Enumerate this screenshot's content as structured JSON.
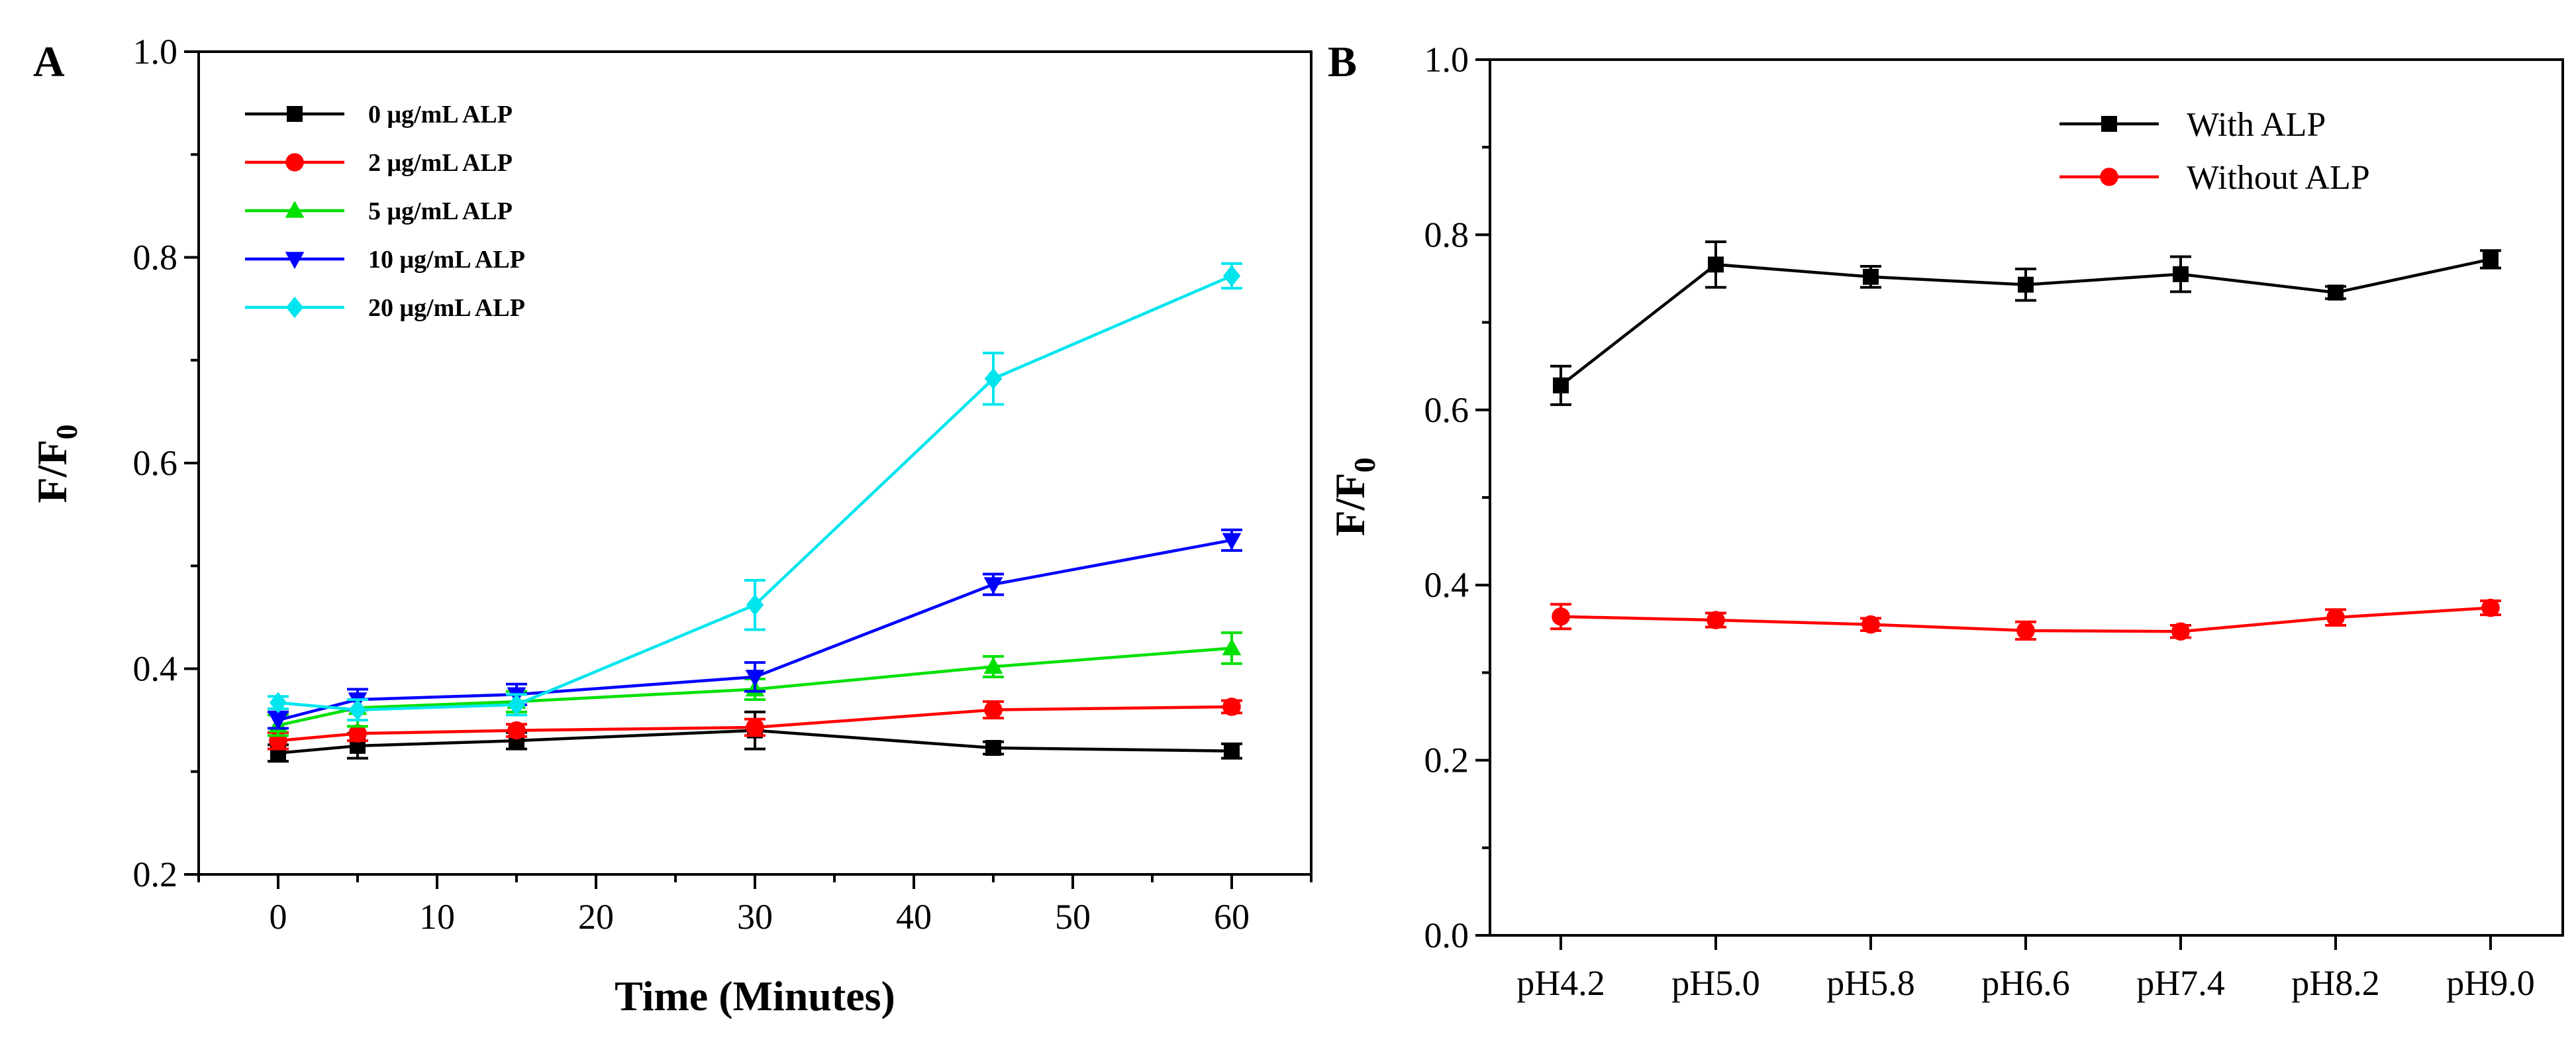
{
  "chart_data": [
    {
      "type": "line",
      "panel_label": "A",
      "xlabel": "Time (Minutes)",
      "ylabel_main": "F/F",
      "ylabel_sub": "0",
      "xlim": [
        -5,
        65
      ],
      "ylim": [
        0.2,
        1.0
      ],
      "xticks": [
        0,
        10,
        20,
        30,
        40,
        50,
        60
      ],
      "yticks": [
        0.2,
        0.4,
        0.6,
        0.8,
        1.0
      ],
      "ytick_labels": [
        "0.2",
        "0.4",
        "0.6",
        "0.8",
        "1.0"
      ],
      "x": [
        0,
        5,
        15,
        30,
        45,
        60
      ],
      "legend_position": "top-left",
      "series": [
        {
          "name": "0 μg/mL ALP",
          "color": "#000000",
          "marker": "square",
          "values": [
            0.318,
            0.325,
            0.33,
            0.34,
            0.323,
            0.32
          ],
          "errors": [
            0.008,
            0.012,
            0.008,
            0.018,
            0.006,
            0.007
          ]
        },
        {
          "name": "2 μg/mL ALP",
          "color": "#ff0000",
          "marker": "circle",
          "values": [
            0.33,
            0.337,
            0.34,
            0.343,
            0.36,
            0.363
          ],
          "errors": [
            0.008,
            0.007,
            0.006,
            0.008,
            0.008,
            0.006
          ]
        },
        {
          "name": "5 μg/mL ALP",
          "color": "#00e000",
          "marker": "triangle-up",
          "values": [
            0.345,
            0.362,
            0.368,
            0.38,
            0.402,
            0.42
          ],
          "errors": [
            0.01,
            0.018,
            0.01,
            0.01,
            0.01,
            0.015
          ]
        },
        {
          "name": "10 μg/mL ALP",
          "color": "#0000ff",
          "marker": "triangle-down",
          "values": [
            0.35,
            0.37,
            0.375,
            0.392,
            0.482,
            0.525
          ],
          "errors": [
            0.008,
            0.01,
            0.01,
            0.014,
            0.01,
            0.01
          ]
        },
        {
          "name": "20 μg/mL ALP",
          "color": "#00e5ee",
          "marker": "diamond",
          "values": [
            0.367,
            0.36,
            0.365,
            0.462,
            0.682,
            0.782
          ],
          "errors": [
            0.006,
            0.01,
            0.01,
            0.024,
            0.025,
            0.012
          ]
        }
      ]
    },
    {
      "type": "line",
      "panel_label": "B",
      "xlabel": "",
      "ylabel_main": "F/F",
      "ylabel_sub": "0",
      "categories": [
        "pH4.2",
        "pH5.0",
        "pH5.8",
        "pH6.6",
        "pH7.4",
        "pH8.2",
        "pH9.0"
      ],
      "ylim": [
        0.0,
        1.0
      ],
      "yticks": [
        0.0,
        0.2,
        0.4,
        0.6,
        0.8,
        1.0
      ],
      "ytick_labels": [
        "0.0",
        "0.2",
        "0.4",
        "0.6",
        "0.8",
        "1.0"
      ],
      "legend_position": "top-right",
      "series": [
        {
          "name": "With ALP",
          "color": "#000000",
          "marker": "square",
          "values": [
            0.628,
            0.766,
            0.752,
            0.743,
            0.755,
            0.734,
            0.772
          ],
          "errors": [
            0.022,
            0.026,
            0.012,
            0.018,
            0.02,
            0.007,
            0.01
          ]
        },
        {
          "name": "Without ALP",
          "color": "#ff0000",
          "marker": "circle",
          "values": [
            0.364,
            0.36,
            0.355,
            0.348,
            0.347,
            0.363,
            0.374
          ],
          "errors": [
            0.014,
            0.008,
            0.007,
            0.01,
            0.007,
            0.009,
            0.008
          ]
        }
      ]
    }
  ]
}
